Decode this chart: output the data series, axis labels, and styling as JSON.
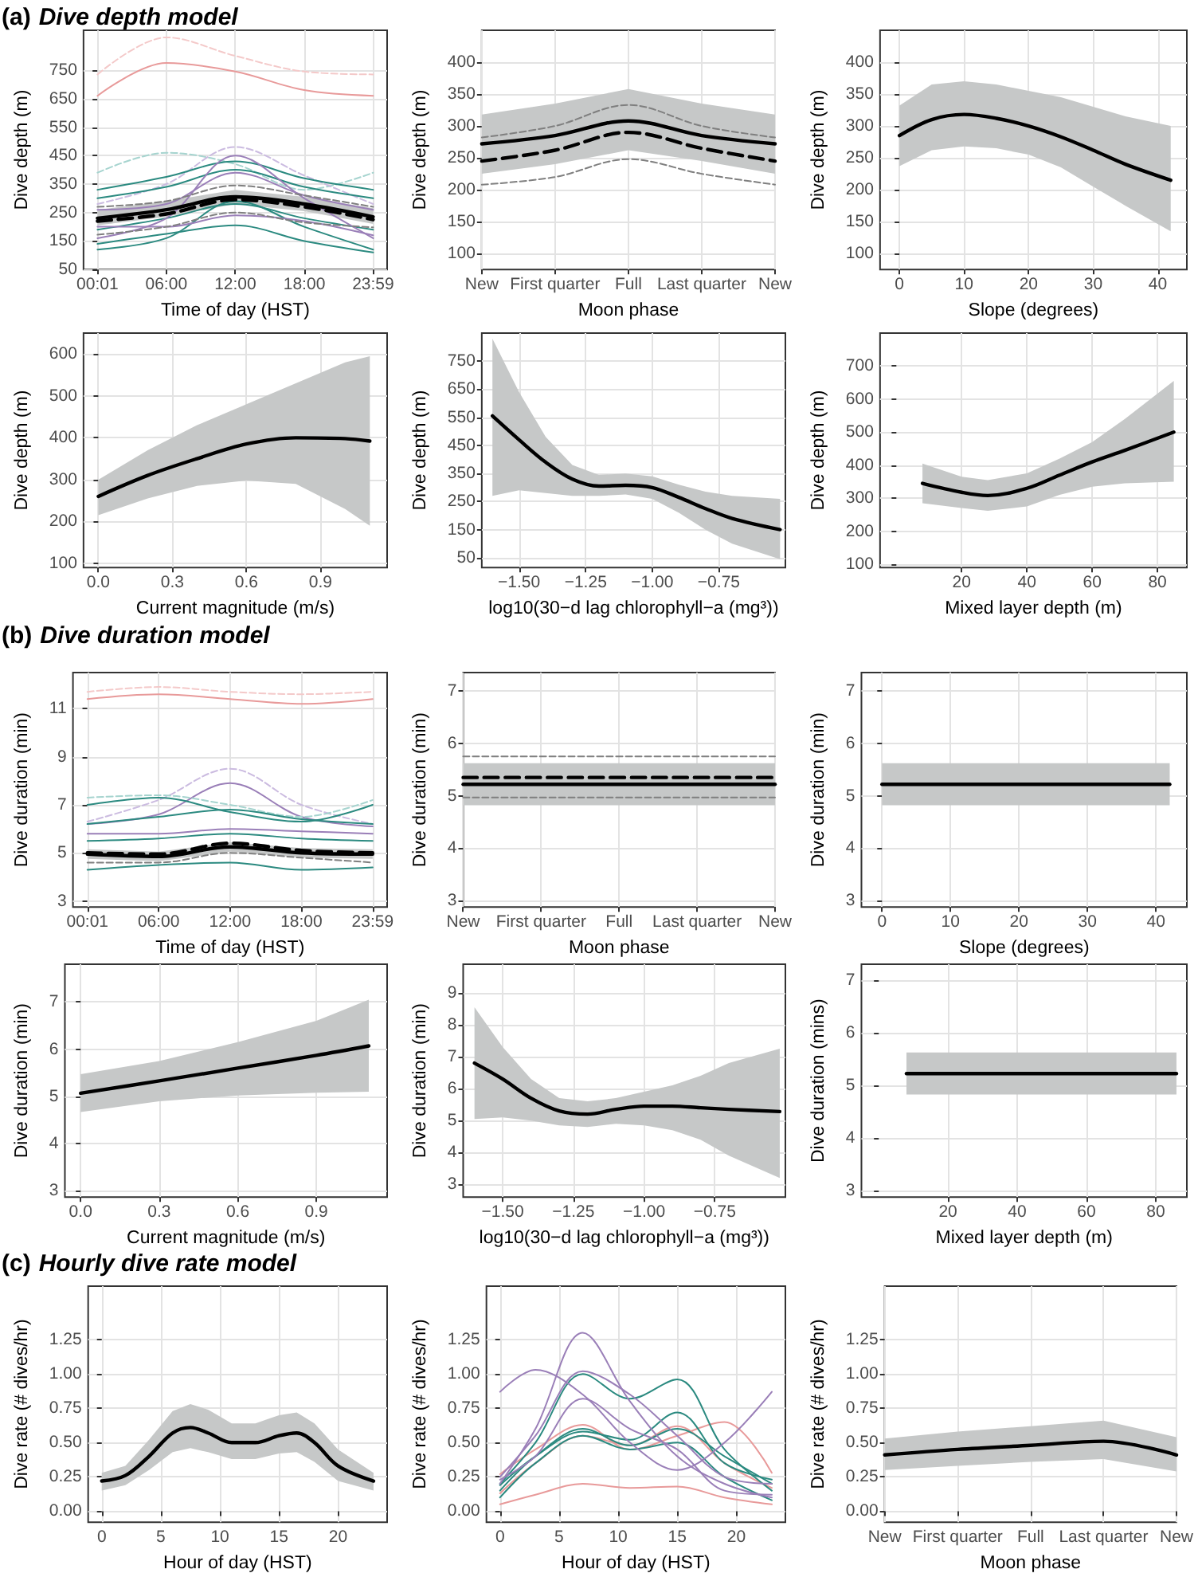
{
  "chart_data": [
    {
      "type": "line",
      "title": "(a) Dive depth model",
      "xlabel": "Time of day (HST)",
      "ylabel": "Dive depth (m)",
      "xlim": [
        -1.2,
        25.2
      ],
      "xticks": [
        {
          "value": 0.0167,
          "label": "00:01"
        },
        {
          "value": 6,
          "label": "06:00"
        },
        {
          "value": 12,
          "label": "12:00"
        },
        {
          "value": 18,
          "label": "18:00"
        },
        {
          "value": 23.983,
          "label": "23:59"
        }
      ],
      "ylim": [
        50,
        890
      ],
      "yticks": [
        50,
        150,
        250,
        350,
        450,
        550,
        650,
        750
      ],
      "grid": true,
      "x": [
        0.0167,
        6,
        12,
        18,
        23.983
      ],
      "series": [
        {
          "color": "#f4c9c9",
          "line_style": "dashed",
          "values": [
            735,
            865,
            800,
            745,
            735
          ]
        },
        {
          "color": "#e89a9a",
          "line_style": "solid",
          "values": [
            660,
            775,
            745,
            680,
            660
          ]
        },
        {
          "color": "#a6d4cf",
          "line_style": "dashed",
          "values": [
            390,
            460,
            420,
            330,
            390
          ]
        },
        {
          "color": "#cbbbe0",
          "line_style": "dashed",
          "values": [
            280,
            350,
            480,
            380,
            280
          ]
        },
        {
          "color": "#2b8a80",
          "line_style": "solid",
          "values": [
            330,
            375,
            430,
            370,
            330
          ]
        },
        {
          "color": "#2b8a80",
          "line_style": "solid",
          "values": [
            300,
            340,
            400,
            340,
            300
          ]
        },
        {
          "color": "#2b8a80",
          "line_style": "solid",
          "values": [
            190,
            230,
            280,
            230,
            190
          ]
        },
        {
          "color": "#2b8a80",
          "line_style": "solid",
          "values": [
            120,
            160,
            290,
            200,
            120
          ]
        },
        {
          "color": "#2b8a80",
          "line_style": "solid",
          "values": [
            140,
            175,
            205,
            150,
            110
          ]
        },
        {
          "color": "#9a7fb8",
          "line_style": "solid",
          "values": [
            160,
            230,
            450,
            300,
            160
          ]
        },
        {
          "color": "#9a7fb8",
          "line_style": "solid",
          "values": [
            260,
            280,
            390,
            310,
            260
          ]
        },
        {
          "color": "#9a7fb8",
          "line_style": "solid",
          "values": [
            200,
            200,
            240,
            220,
            170
          ]
        },
        {
          "color": "#7f7f7f",
          "line_style": "dashed",
          "values": [
            172,
            200,
            250,
            215,
            198
          ]
        },
        {
          "color": "#7f7f7f",
          "line_style": "dashed",
          "values": [
            270,
            290,
            345,
            310,
            270
          ]
        },
        {
          "color": "#000000",
          "line_style": "solid",
          "values": [
            230,
            260,
            305,
            280,
            235
          ],
          "lower": [
            205,
            235,
            280,
            255,
            210
          ],
          "upper": [
            260,
            290,
            330,
            305,
            265
          ]
        },
        {
          "color": "#000000",
          "line_style": "dashed",
          "values": [
            220,
            245,
            295,
            270,
            225
          ]
        }
      ]
    },
    {
      "type": "line",
      "xlabel": "Moon phase",
      "ylabel": "Dive depth (m)",
      "categories": [
        "New",
        "First quarter",
        "Full",
        "Last quarter",
        "New"
      ],
      "ylim": [
        75,
        450
      ],
      "yticks": [
        100,
        150,
        200,
        250,
        300,
        350,
        400
      ],
      "grid": true,
      "series": [
        {
          "color": "#000000",
          "line_style": "solid",
          "values": [
            272,
            285,
            308,
            285,
            272
          ],
          "lower": [
            225,
            240,
            262,
            245,
            225
          ],
          "upper": [
            318,
            335,
            358,
            335,
            318
          ]
        },
        {
          "color": "#000000",
          "line_style": "dashed",
          "values": [
            245,
            262,
            290,
            265,
            245
          ]
        },
        {
          "color": "#7f7f7f",
          "line_style": "dashed",
          "values": [
            282,
            300,
            333,
            300,
            282
          ]
        },
        {
          "color": "#7f7f7f",
          "line_style": "dashed",
          "values": [
            208,
            220,
            248,
            225,
            208
          ]
        }
      ]
    },
    {
      "type": "line",
      "xlabel": "Slope (degrees)",
      "ylabel": "Dive depth (m)",
      "xlim": [
        -3,
        44.5
      ],
      "xticks": [
        0,
        10,
        20,
        30,
        40
      ],
      "ylim": [
        75,
        450
      ],
      "yticks": [
        100,
        150,
        200,
        250,
        300,
        350,
        400
      ],
      "grid": true,
      "x": [
        0,
        5,
        10,
        15,
        20,
        25,
        30,
        35,
        42
      ],
      "series": [
        {
          "color": "#000000",
          "line_style": "solid",
          "values": [
            285,
            310,
            318,
            312,
            300,
            283,
            262,
            240,
            215
          ],
          "lower": [
            237,
            262,
            268,
            265,
            255,
            235,
            205,
            175,
            135
          ],
          "upper": [
            332,
            365,
            370,
            365,
            355,
            345,
            330,
            315,
            300
          ]
        }
      ]
    },
    {
      "type": "line",
      "xlabel": "Current magnitude (m/s)",
      "ylabel": "Dive depth (m)",
      "xlim": [
        -0.06,
        1.17
      ],
      "xticks": [
        {
          "value": 0,
          "label": "0.0"
        },
        {
          "value": 0.3,
          "label": "0.3"
        },
        {
          "value": 0.6,
          "label": "0.6"
        },
        {
          "value": 0.9,
          "label": "0.9"
        }
      ],
      "ylim": [
        90,
        650
      ],
      "yticks": [
        100,
        200,
        300,
        400,
        500,
        600
      ],
      "grid": true,
      "x": [
        0,
        0.2,
        0.4,
        0.6,
        0.8,
        1.0,
        1.1
      ],
      "series": [
        {
          "color": "#000000",
          "line_style": "solid",
          "values": [
            260,
            310,
            350,
            385,
            400,
            398,
            392
          ],
          "lower": [
            215,
            255,
            285,
            298,
            290,
            230,
            190
          ],
          "upper": [
            300,
            370,
            430,
            480,
            530,
            580,
            595
          ]
        }
      ]
    },
    {
      "type": "line",
      "xlabel": "log10(30−d lag chlorophyll−a (mg³))",
      "ylabel": "Dive depth (m)",
      "xlim": [
        -1.64,
        -0.5
      ],
      "xticks": [
        {
          "value": -1.5,
          "label": "−1.50"
        },
        {
          "value": -1.25,
          "label": "−1.25"
        },
        {
          "value": -1,
          "label": "−1.00"
        },
        {
          "value": -0.75,
          "label": "−0.75"
        }
      ],
      "ylim": [
        15,
        850
      ],
      "yticks": [
        50,
        150,
        250,
        350,
        450,
        550,
        650,
        750
      ],
      "grid": true,
      "x": [
        -1.6,
        -1.5,
        -1.4,
        -1.3,
        -1.2,
        -1.1,
        -1.0,
        -0.9,
        -0.8,
        -0.7,
        -0.52
      ],
      "series": [
        {
          "color": "#000000",
          "line_style": "solid",
          "values": [
            555,
            470,
            390,
            330,
            305,
            308,
            300,
            265,
            225,
            190,
            150
          ],
          "lower": [
            270,
            290,
            280,
            270,
            270,
            275,
            260,
            210,
            150,
            100,
            45
          ],
          "upper": [
            830,
            640,
            480,
            380,
            345,
            350,
            340,
            310,
            285,
            270,
            260
          ]
        }
      ]
    },
    {
      "type": "line",
      "xlabel": "Mixed layer depth (m)",
      "ylabel": "Dive depth (m)",
      "xlim": [
        -5,
        89
      ],
      "xticks": [
        20,
        40,
        60,
        80
      ],
      "ylim": [
        90,
        800
      ],
      "yticks": [
        100,
        200,
        300,
        400,
        500,
        600,
        700
      ],
      "grid": true,
      "x": [
        8,
        20,
        28,
        40,
        50,
        60,
        70,
        85
      ],
      "series": [
        {
          "color": "#000000",
          "line_style": "solid",
          "values": [
            345,
            318,
            308,
            330,
            370,
            410,
            445,
            500
          ],
          "lower": [
            285,
            270,
            262,
            275,
            310,
            335,
            345,
            350
          ],
          "upper": [
            405,
            365,
            355,
            375,
            420,
            470,
            540,
            655
          ]
        }
      ]
    },
    {
      "type": "line",
      "title": "(b) Dive duration model",
      "xlabel": "Time of day (HST)",
      "ylabel": "Dive duration (min)",
      "xlim": [
        -1.2,
        25.2
      ],
      "xticks": [
        {
          "value": 0.0167,
          "label": "00:01"
        },
        {
          "value": 6,
          "label": "06:00"
        },
        {
          "value": 12,
          "label": "12:00"
        },
        {
          "value": 18,
          "label": "18:00"
        },
        {
          "value": 23.983,
          "label": "23:59"
        }
      ],
      "ylim": [
        2.75,
        12.5
      ],
      "yticks": [
        3,
        5,
        7,
        9,
        11
      ],
      "grid": true,
      "x": [
        0.0167,
        6,
        12,
        18,
        23.983
      ],
      "series": [
        {
          "color": "#f4c9c9",
          "line_style": "dashed",
          "values": [
            11.7,
            11.9,
            11.7,
            11.6,
            11.7
          ]
        },
        {
          "color": "#e89a9a",
          "line_style": "solid",
          "values": [
            11.4,
            11.6,
            11.4,
            11.2,
            11.4
          ]
        },
        {
          "color": "#cbbbe0",
          "line_style": "dashed",
          "values": [
            6.3,
            7.2,
            8.5,
            7.0,
            6.2
          ]
        },
        {
          "color": "#9a7fb8",
          "line_style": "solid",
          "values": [
            6.2,
            6.6,
            7.9,
            6.5,
            6.1
          ]
        },
        {
          "color": "#a6d4cf",
          "line_style": "dashed",
          "values": [
            7.3,
            7.4,
            7.0,
            6.5,
            7.2
          ]
        },
        {
          "color": "#2b8a80",
          "line_style": "solid",
          "values": [
            7.0,
            7.3,
            6.7,
            6.3,
            7.0
          ]
        },
        {
          "color": "#2b8a80",
          "line_style": "solid",
          "values": [
            6.2,
            6.5,
            6.8,
            6.4,
            6.2
          ]
        },
        {
          "color": "#2b8a80",
          "line_style": "solid",
          "values": [
            5.5,
            5.6,
            5.8,
            5.6,
            5.5
          ]
        },
        {
          "color": "#2b8a80",
          "line_style": "solid",
          "values": [
            4.3,
            4.5,
            4.6,
            4.3,
            4.4
          ]
        },
        {
          "color": "#9a7fb8",
          "line_style": "solid",
          "values": [
            5.8,
            5.8,
            6.0,
            5.9,
            5.8
          ]
        },
        {
          "color": "#7f7f7f",
          "line_style": "dashed",
          "values": [
            4.6,
            4.6,
            5.0,
            4.8,
            4.6
          ]
        },
        {
          "color": "#000000",
          "line_style": "solid",
          "values": [
            4.95,
            4.85,
            5.25,
            5.0,
            4.95
          ],
          "lower": [
            4.75,
            4.65,
            5.05,
            4.8,
            4.75
          ],
          "upper": [
            5.15,
            5.05,
            5.45,
            5.2,
            5.15
          ]
        },
        {
          "color": "#000000",
          "line_style": "dashed",
          "values": [
            5.0,
            4.95,
            5.4,
            5.1,
            5.0
          ]
        }
      ]
    },
    {
      "type": "line",
      "xlabel": "Moon phase",
      "ylabel": "Dive duration (min)",
      "categories": [
        "New",
        "First quarter",
        "Full",
        "Last quarter",
        "New"
      ],
      "ylim": [
        2.88,
        7.35
      ],
      "yticks": [
        3,
        4,
        5,
        6,
        7
      ],
      "grid": true,
      "series": [
        {
          "color": "#000000",
          "line_style": "solid",
          "values": [
            5.22,
            5.22,
            5.22,
            5.22,
            5.22
          ],
          "lower": [
            4.82,
            4.82,
            4.82,
            4.82,
            4.82
          ],
          "upper": [
            5.62,
            5.62,
            5.62,
            5.62,
            5.62
          ]
        },
        {
          "color": "#000000",
          "line_style": "dashed",
          "values": [
            5.35,
            5.35,
            5.35,
            5.35,
            5.35
          ]
        },
        {
          "color": "#7f7f7f",
          "line_style": "dashed",
          "values": [
            5.75,
            5.75,
            5.75,
            5.75,
            5.75
          ]
        },
        {
          "color": "#7f7f7f",
          "line_style": "dashed",
          "values": [
            4.97,
            4.97,
            4.97,
            4.97,
            4.97
          ]
        }
      ]
    },
    {
      "type": "line",
      "xlabel": "Slope (degrees)",
      "ylabel": "Dive duration (min)",
      "xlim": [
        -3,
        44.5
      ],
      "xticks": [
        0,
        10,
        20,
        30,
        40
      ],
      "ylim": [
        2.88,
        7.35
      ],
      "yticks": [
        3,
        4,
        5,
        6,
        7
      ],
      "grid": true,
      "x": [
        0,
        42
      ],
      "series": [
        {
          "color": "#000000",
          "line_style": "solid",
          "values": [
            5.22,
            5.22
          ],
          "lower": [
            4.82,
            4.82
          ],
          "upper": [
            5.62,
            5.62
          ]
        }
      ]
    },
    {
      "type": "line",
      "xlabel": "Current magnitude (m/s)",
      "ylabel": "Dive duration (min)",
      "xlim": [
        -0.06,
        1.17
      ],
      "xticks": [
        {
          "value": 0,
          "label": "0.0"
        },
        {
          "value": 0.3,
          "label": "0.3"
        },
        {
          "value": 0.6,
          "label": "0.6"
        },
        {
          "value": 0.9,
          "label": "0.9"
        }
      ],
      "ylim": [
        2.87,
        7.8
      ],
      "yticks": [
        3,
        4,
        5,
        6,
        7
      ],
      "grid": true,
      "x": [
        0,
        0.3,
        0.6,
        0.9,
        1.1
      ],
      "series": [
        {
          "color": "#000000",
          "line_style": "solid",
          "values": [
            5.07,
            5.33,
            5.6,
            5.87,
            6.07
          ],
          "lower": [
            4.67,
            4.9,
            5.02,
            5.08,
            5.1
          ],
          "upper": [
            5.47,
            5.75,
            6.15,
            6.6,
            7.05
          ]
        }
      ]
    },
    {
      "type": "line",
      "xlabel": "log10(30−d lag chlorophyll−a (mg³))",
      "ylabel": "Dive duration (min)",
      "xlim": [
        -1.64,
        -0.5
      ],
      "xticks": [
        {
          "value": -1.5,
          "label": "−1.50"
        },
        {
          "value": -1.25,
          "label": "−1.25"
        },
        {
          "value": -1,
          "label": "−1.00"
        },
        {
          "value": -0.75,
          "label": "−0.75"
        }
      ],
      "ylim": [
        2.6,
        9.9
      ],
      "yticks": [
        3,
        4,
        5,
        6,
        7,
        8,
        9
      ],
      "grid": true,
      "x": [
        -1.6,
        -1.5,
        -1.4,
        -1.3,
        -1.2,
        -1.1,
        -1.0,
        -0.9,
        -0.8,
        -0.7,
        -0.52
      ],
      "series": [
        {
          "color": "#000000",
          "line_style": "solid",
          "values": [
            6.8,
            6.3,
            5.7,
            5.3,
            5.2,
            5.35,
            5.45,
            5.45,
            5.4,
            5.35,
            5.28
          ],
          "lower": [
            5.05,
            5.1,
            5.0,
            4.85,
            4.8,
            4.9,
            4.85,
            4.7,
            4.4,
            3.9,
            3.2
          ],
          "upper": [
            8.55,
            7.3,
            6.3,
            5.7,
            5.6,
            5.7,
            5.9,
            6.1,
            6.4,
            6.8,
            7.25
          ]
        }
      ]
    },
    {
      "type": "line",
      "xlabel": "Mixed layer depth (m)",
      "ylabel": "Dive duration (mins)",
      "xlim": [
        -5,
        89
      ],
      "xticks": [
        20,
        40,
        60,
        80
      ],
      "ylim": [
        2.87,
        7.3
      ],
      "yticks": [
        3,
        4,
        5,
        6,
        7
      ],
      "grid": true,
      "x": [
        8,
        86
      ],
      "series": [
        {
          "color": "#000000",
          "line_style": "solid",
          "values": [
            5.22,
            5.22
          ],
          "lower": [
            4.82,
            4.82
          ],
          "upper": [
            5.62,
            5.62
          ]
        }
      ]
    },
    {
      "type": "line",
      "title": "(c) Hourly dive rate model",
      "xlabel": "Hour of day (HST)",
      "ylabel": "Dive rate (# dives/hr)",
      "xlim": [
        -1.15,
        24.15
      ],
      "xticks": [
        0,
        5,
        10,
        15,
        20
      ],
      "ylim": [
        -0.08,
        1.64
      ],
      "yticks": [
        {
          "value": 0,
          "label": "0.00"
        },
        {
          "value": 0.25,
          "label": "0.25"
        },
        {
          "value": 0.5,
          "label": "0.50"
        },
        {
          "value": 0.75,
          "label": "0.75"
        },
        {
          "value": 1,
          "label": "1.00"
        },
        {
          "value": 1.25,
          "label": "1.25"
        }
      ],
      "grid": true,
      "x": [
        0,
        2,
        4,
        6,
        7.5,
        9,
        11,
        13,
        15,
        16.5,
        18,
        20,
        23
      ],
      "series": [
        {
          "color": "#000000",
          "line_style": "solid",
          "values": [
            0.22,
            0.26,
            0.4,
            0.57,
            0.61,
            0.57,
            0.5,
            0.5,
            0.55,
            0.57,
            0.5,
            0.33,
            0.22
          ],
          "lower": [
            0.15,
            0.19,
            0.3,
            0.43,
            0.46,
            0.43,
            0.38,
            0.38,
            0.42,
            0.43,
            0.36,
            0.22,
            0.15
          ],
          "upper": [
            0.28,
            0.33,
            0.52,
            0.73,
            0.78,
            0.74,
            0.64,
            0.64,
            0.7,
            0.72,
            0.64,
            0.45,
            0.28
          ]
        }
      ]
    },
    {
      "type": "line",
      "xlabel": "Hour of day (HST)",
      "ylabel": "Dive rate (# dives/hr)",
      "xlim": [
        -1.15,
        24.15
      ],
      "xticks": [
        0,
        5,
        10,
        15,
        20
      ],
      "ylim": [
        -0.08,
        1.64
      ],
      "yticks": [
        {
          "value": 0,
          "label": "0.00"
        },
        {
          "value": 0.25,
          "label": "0.25"
        },
        {
          "value": 0.5,
          "label": "0.50"
        },
        {
          "value": 0.75,
          "label": "0.75"
        },
        {
          "value": 1,
          "label": "1.00"
        },
        {
          "value": 1.25,
          "label": "1.25"
        }
      ],
      "grid": true,
      "x": [
        0,
        3,
        7,
        11,
        15,
        19,
        23
      ],
      "series": [
        {
          "color": "#e89a9a",
          "line_style": "solid",
          "values": [
            0.05,
            0.12,
            0.2,
            0.17,
            0.18,
            0.1,
            0.05
          ]
        },
        {
          "color": "#e89a9a",
          "line_style": "solid",
          "values": [
            0.27,
            0.45,
            0.63,
            0.45,
            0.55,
            0.65,
            0.28
          ]
        },
        {
          "color": "#e89a9a",
          "line_style": "solid",
          "values": [
            0.13,
            0.35,
            0.55,
            0.48,
            0.62,
            0.35,
            0.17
          ]
        },
        {
          "color": "#2b8a80",
          "line_style": "solid",
          "values": [
            0.2,
            0.5,
            1.0,
            0.82,
            0.96,
            0.45,
            0.15
          ]
        },
        {
          "color": "#2b8a80",
          "line_style": "solid",
          "values": [
            0.15,
            0.4,
            0.6,
            0.48,
            0.6,
            0.4,
            0.2
          ]
        },
        {
          "color": "#2b8a80",
          "line_style": "solid",
          "values": [
            0.1,
            0.35,
            0.55,
            0.45,
            0.5,
            0.25,
            0.08
          ]
        },
        {
          "color": "#2b8a80",
          "line_style": "solid",
          "values": [
            0.19,
            0.4,
            0.58,
            0.52,
            0.72,
            0.35,
            0.23
          ]
        },
        {
          "color": "#9a7fb8",
          "line_style": "solid",
          "values": [
            0.87,
            1.03,
            0.85,
            0.5,
            0.3,
            0.5,
            0.87
          ]
        },
        {
          "color": "#9a7fb8",
          "line_style": "solid",
          "values": [
            0.2,
            0.6,
            1.3,
            0.8,
            0.4,
            0.2,
            0.1
          ]
        },
        {
          "color": "#9a7fb8",
          "line_style": "solid",
          "values": [
            0.25,
            0.55,
            1.02,
            0.85,
            0.55,
            0.25,
            0.2
          ]
        },
        {
          "color": "#9a7fb8",
          "line_style": "solid",
          "values": [
            0.23,
            0.4,
            0.82,
            0.6,
            0.45,
            0.15,
            0.12
          ]
        }
      ]
    },
    {
      "type": "line",
      "xlabel": "Moon phase",
      "ylabel": "Dive rate (# dives/hr)",
      "categories": [
        "New",
        "First quarter",
        "Full",
        "Last quarter",
        "New"
      ],
      "ylim": [
        -0.08,
        1.64
      ],
      "yticks": [
        {
          "value": 0,
          "label": "0.00"
        },
        {
          "value": 0.25,
          "label": "0.25"
        },
        {
          "value": 0.5,
          "label": "0.50"
        },
        {
          "value": 0.75,
          "label": "0.75"
        },
        {
          "value": 1,
          "label": "1.00"
        },
        {
          "value": 1.25,
          "label": "1.25"
        }
      ],
      "grid": true,
      "series": [
        {
          "color": "#000000",
          "line_style": "solid",
          "values": [
            0.41,
            0.45,
            0.48,
            0.51,
            0.41
          ],
          "lower": [
            0.3,
            0.33,
            0.36,
            0.38,
            0.29
          ],
          "upper": [
            0.53,
            0.58,
            0.62,
            0.66,
            0.54
          ]
        }
      ]
    }
  ]
}
